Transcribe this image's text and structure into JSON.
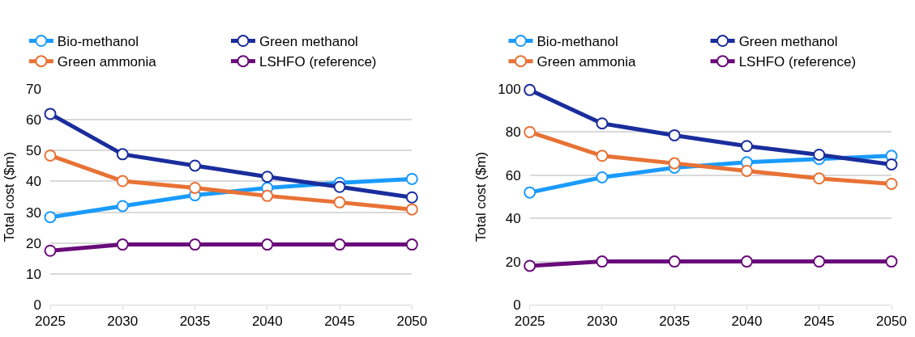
{
  "chart_data": [
    {
      "type": "line",
      "ylabel": "Total cost ($m)",
      "x": [
        2025,
        2030,
        2035,
        2040,
        2045,
        2050
      ],
      "xlim": [
        2025,
        2050
      ],
      "xticks": [
        2025,
        2030,
        2035,
        2040,
        2045,
        2050
      ],
      "ylim": [
        0,
        70
      ],
      "yticks": [
        0,
        10,
        20,
        30,
        40,
        50,
        60,
        70
      ],
      "grid": "y",
      "legend": "top",
      "marker": "circle",
      "line_style": "solid",
      "series": [
        {
          "name": "Bio-methanol",
          "color": "#1a9bfc",
          "values": [
            28.4,
            32.0,
            35.5,
            37.9,
            39.5,
            40.8
          ]
        },
        {
          "name": "Green methanol",
          "color": "#1a2d9c",
          "values": [
            61.9,
            48.8,
            45.1,
            41.5,
            38.2,
            34.8
          ]
        },
        {
          "name": "Green ammonia",
          "color": "#e87235",
          "values": [
            48.4,
            40.1,
            37.9,
            35.3,
            33.2,
            30.9
          ]
        },
        {
          "name": "LSHFO (reference)",
          "color": "#690a7a",
          "values": [
            17.5,
            19.5,
            19.5,
            19.5,
            19.5,
            19.5
          ]
        }
      ]
    },
    {
      "type": "line",
      "ylabel": "Total cost ($m)",
      "x": [
        2025,
        2030,
        2035,
        2040,
        2045,
        2050
      ],
      "xlim": [
        2025,
        2050
      ],
      "xticks": [
        2025,
        2030,
        2035,
        2040,
        2045,
        2050
      ],
      "ylim": [
        0,
        100
      ],
      "yticks": [
        0,
        20,
        40,
        60,
        80,
        100
      ],
      "grid": "y",
      "legend": "top",
      "marker": "circle",
      "line_style": "solid",
      "series": [
        {
          "name": "Bio-methanol",
          "color": "#1a9bfc",
          "values": [
            52,
            59,
            63.5,
            66,
            67.5,
            69
          ]
        },
        {
          "name": "Green methanol",
          "color": "#1a2d9c",
          "values": [
            99.5,
            84,
            78.5,
            73.5,
            69.5,
            65
          ]
        },
        {
          "name": "Green ammonia",
          "color": "#e87235",
          "values": [
            80,
            69,
            65.5,
            62,
            58.5,
            56
          ]
        },
        {
          "name": "LSHFO (reference)",
          "color": "#690a7a",
          "values": [
            18,
            20,
            20,
            20,
            20,
            20
          ]
        }
      ]
    }
  ]
}
